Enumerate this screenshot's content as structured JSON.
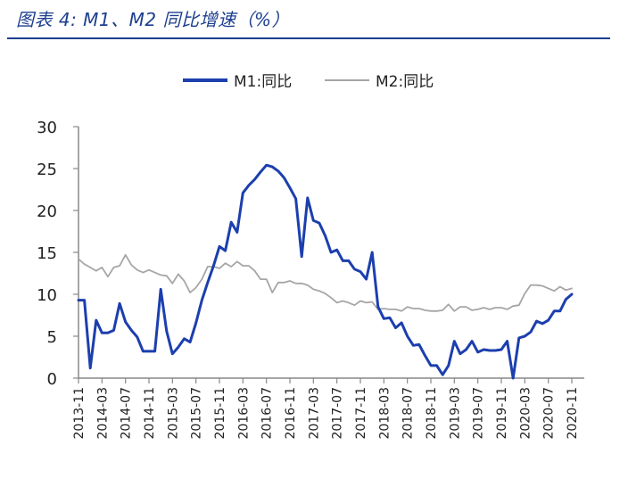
{
  "title": "图表 4:  M1、M2 同比增速（%）",
  "chart_data": {
    "type": "line",
    "title": "图表 4:  M1、M2 同比增速（%）",
    "xlabel": "",
    "ylabel": "",
    "ylim": [
      0,
      30
    ],
    "yticks": [
      "0",
      "5",
      "10",
      "15",
      "20",
      "25",
      "30"
    ],
    "x_tick_labels": [
      "2013-11",
      "2014-03",
      "2014-07",
      "2014-11",
      "2015-03",
      "2015-07",
      "2015-11",
      "2016-03",
      "2016-07",
      "2016-11",
      "2017-03",
      "2017-07",
      "2017-11",
      "2018-03",
      "2018-07",
      "2018-11",
      "2019-03",
      "2019-07",
      "2019-11",
      "2020-03",
      "2020-07",
      "2020-11"
    ],
    "legend_position": "top-center",
    "grid": false,
    "colors": {
      "m1": "#1c3fae",
      "m2": "#a6a6a6",
      "axis": "#888888",
      "title": "#1d3f8f"
    },
    "series": [
      {
        "name": "M1:同比",
        "key": "m1",
        "values": [
          9.3,
          9.3,
          1.2,
          6.9,
          5.4,
          5.4,
          5.7,
          8.9,
          6.7,
          5.7,
          4.9,
          3.2,
          3.2,
          3.2,
          10.6,
          5.6,
          2.9,
          3.7,
          4.7,
          4.3,
          6.6,
          9.3,
          11.4,
          13.4,
          15.7,
          15.2,
          18.6,
          17.4,
          22.1,
          23.0,
          23.7,
          24.6,
          25.4,
          25.2,
          24.7,
          23.9,
          22.7,
          21.4,
          14.5,
          21.5,
          18.8,
          18.5,
          17.0,
          15.0,
          15.3,
          14.0,
          14.0,
          13.0,
          12.7,
          11.8,
          15.0,
          8.5,
          7.1,
          7.2,
          6.0,
          6.6,
          5.0,
          3.9,
          4.0,
          2.7,
          1.5,
          1.5,
          0.4,
          1.5,
          4.4,
          2.9,
          3.4,
          4.4,
          3.1,
          3.4,
          3.3,
          3.3,
          3.4,
          4.4,
          0.0,
          4.8,
          5.0,
          5.5,
          6.8,
          6.5,
          6.9,
          8.0,
          8.0,
          9.4,
          10.0
        ]
      },
      {
        "name": "M2:同比",
        "key": "m2",
        "values": [
          14.2,
          13.6,
          13.2,
          12.8,
          13.2,
          12.1,
          13.2,
          13.4,
          14.7,
          13.5,
          12.9,
          12.6,
          12.9,
          12.6,
          12.3,
          12.2,
          11.3,
          12.4,
          11.6,
          10.2,
          10.8,
          11.8,
          13.3,
          13.3,
          13.1,
          13.7,
          13.3,
          13.9,
          13.4,
          13.4,
          12.8,
          11.8,
          11.8,
          10.2,
          11.4,
          11.4,
          11.6,
          11.3,
          11.3,
          11.1,
          10.6,
          10.4,
          10.1,
          9.6,
          9.0,
          9.2,
          9.0,
          8.7,
          9.2,
          9.0,
          9.1,
          8.2,
          8.3,
          8.2,
          8.2,
          8.0,
          8.5,
          8.3,
          8.3,
          8.1,
          8.0,
          8.0,
          8.1,
          8.8,
          8.0,
          8.5,
          8.5,
          8.1,
          8.2,
          8.4,
          8.2,
          8.4,
          8.4,
          8.2,
          8.6,
          8.7,
          10.1,
          11.1,
          11.1,
          11.0,
          10.7,
          10.4,
          10.9,
          10.5,
          10.7
        ]
      }
    ]
  }
}
